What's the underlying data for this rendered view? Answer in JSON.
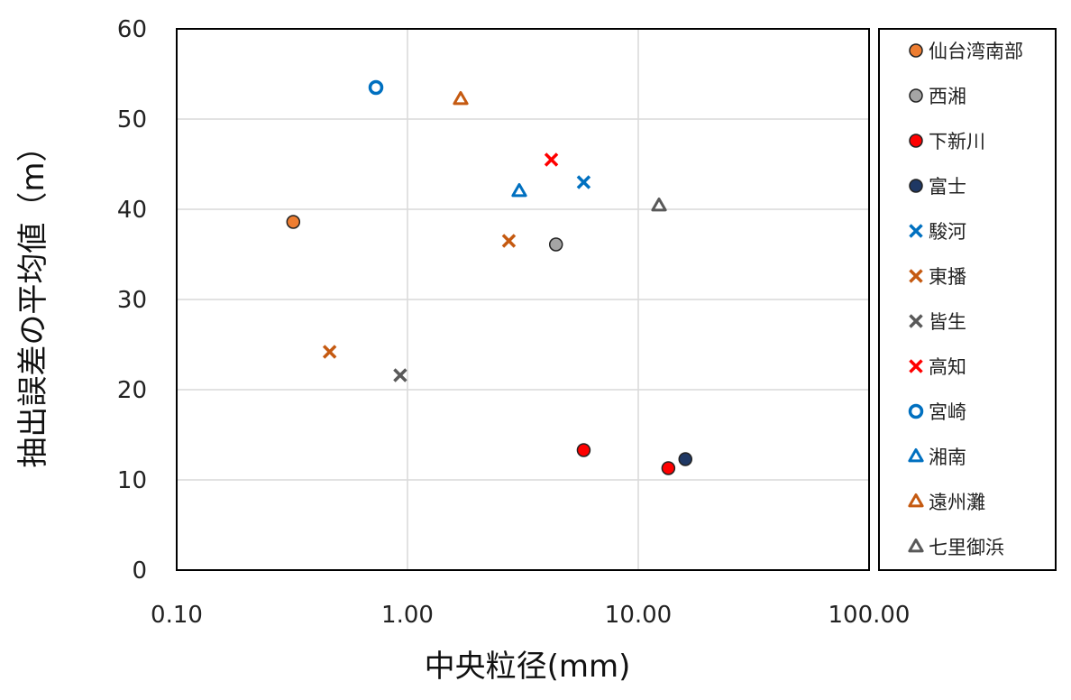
{
  "chart_data": {
    "type": "scatter",
    "xlabel": "中央粒径(mm)",
    "ylabel": "抽出誤差の平均値（m）",
    "x_scale": "log",
    "xlim": [
      0.1,
      100
    ],
    "ylim": [
      0,
      60
    ],
    "x_ticks": [
      0.1,
      1,
      10,
      100
    ],
    "x_tick_labels": [
      "0.10",
      "1.00",
      "10.00",
      "100.00"
    ],
    "y_ticks": [
      0,
      10,
      20,
      30,
      40,
      50,
      60
    ],
    "y_tick_labels": [
      "0",
      "10",
      "20",
      "30",
      "40",
      "50",
      "60"
    ],
    "grid": true,
    "legend_position": "right",
    "series": [
      {
        "name": "仙台湾南部",
        "marker": "circle",
        "color": "#ed7d31",
        "edge": "#222222",
        "points": [
          {
            "x": 0.32,
            "y": 38.6
          }
        ]
      },
      {
        "name": "西湘",
        "marker": "circle",
        "color": "#a5a5a5",
        "edge": "#222222",
        "points": [
          {
            "x": 4.4,
            "y": 36.1
          }
        ]
      },
      {
        "name": "下新川",
        "marker": "circle",
        "color": "#ff0000",
        "edge": "#222222",
        "points": [
          {
            "x": 5.8,
            "y": 13.3
          },
          {
            "x": 13.5,
            "y": 11.3
          }
        ]
      },
      {
        "name": "富士",
        "marker": "circle",
        "color": "#1f3864",
        "edge": "#222222",
        "points": [
          {
            "x": 16.0,
            "y": 12.3
          }
        ]
      },
      {
        "name": "駿河",
        "marker": "x",
        "color": "#0070c0",
        "points": [
          {
            "x": 5.8,
            "y": 43.0
          }
        ]
      },
      {
        "name": "東播",
        "marker": "x",
        "color": "#c55a11",
        "points": [
          {
            "x": 0.46,
            "y": 24.2
          },
          {
            "x": 2.75,
            "y": 36.5
          }
        ]
      },
      {
        "name": "皆生",
        "marker": "x",
        "color": "#595959",
        "points": [
          {
            "x": 0.93,
            "y": 21.6
          }
        ]
      },
      {
        "name": "高知",
        "marker": "x",
        "color": "#ff0000",
        "points": [
          {
            "x": 4.2,
            "y": 45.5
          }
        ]
      },
      {
        "name": "宮崎",
        "marker": "open-circle",
        "color": "#0070c0",
        "points": [
          {
            "x": 0.73,
            "y": 53.5
          }
        ]
      },
      {
        "name": "湘南",
        "marker": "open-triangle",
        "color": "#0070c0",
        "points": [
          {
            "x": 3.05,
            "y": 42.0
          }
        ]
      },
      {
        "name": "遠州灘",
        "marker": "open-triangle",
        "color": "#c55a11",
        "points": [
          {
            "x": 1.7,
            "y": 52.2
          }
        ]
      },
      {
        "name": "七里御浜",
        "marker": "open-triangle",
        "color": "#595959",
        "points": [
          {
            "x": 12.3,
            "y": 40.4
          }
        ]
      }
    ]
  }
}
